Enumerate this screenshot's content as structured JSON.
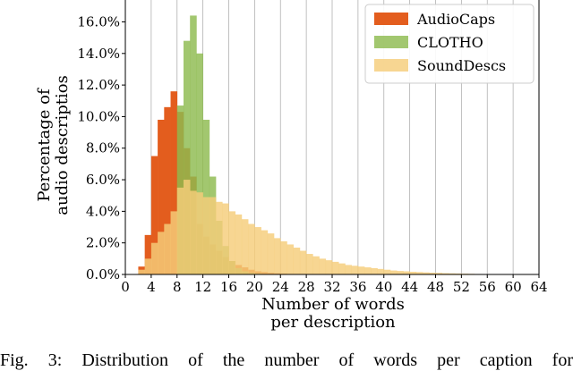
{
  "chart_data": {
    "type": "bar",
    "xlabel": "Number of words\nper description",
    "ylabel": "Percentage of\naudio descriptios",
    "xlim": [
      0,
      64
    ],
    "ylim": [
      0,
      17.5
    ],
    "xticks": [
      0,
      4,
      8,
      12,
      16,
      20,
      24,
      28,
      32,
      36,
      40,
      44,
      48,
      52,
      56,
      60,
      64
    ],
    "yticks": [
      0,
      2,
      4,
      6,
      8,
      10,
      12,
      14,
      16
    ],
    "ytick_format": "percent_1dp",
    "grid": "x",
    "legend_position": "top-right",
    "series": [
      {
        "name": "AudioCaps",
        "color": "#e35d1e",
        "x": [
          2,
          3,
          4,
          5,
          6,
          7,
          8,
          9,
          10,
          11,
          12,
          13,
          14,
          15,
          16,
          17,
          18,
          19,
          20,
          21,
          22,
          23,
          24,
          25
        ],
        "values": [
          0.5,
          2.5,
          7.5,
          9.8,
          10.6,
          11.6,
          10.3,
          8.0,
          6.2,
          3.2,
          2.4,
          1.9,
          1.5,
          1.1,
          0.85,
          0.6,
          0.45,
          0.3,
          0.2,
          0.15,
          0.1,
          0.07,
          0.05,
          0.03
        ]
      },
      {
        "name": "CLOTHO",
        "color": "#8dbb4f",
        "x": [
          8,
          9,
          10,
          11,
          12,
          13,
          14,
          15,
          16,
          17,
          18,
          19,
          20,
          21
        ],
        "values": [
          10.7,
          14.8,
          16.4,
          14.0,
          9.8,
          6.2,
          3.4,
          1.8,
          0.85,
          0.4,
          0.2,
          0.1,
          0.05,
          0.02
        ]
      },
      {
        "name": "SoundDescs",
        "color": "#f5cd7a",
        "x": [
          2,
          3,
          4,
          5,
          6,
          7,
          8,
          9,
          10,
          11,
          12,
          13,
          14,
          15,
          16,
          17,
          18,
          19,
          20,
          21,
          22,
          23,
          24,
          25,
          26,
          27,
          28,
          29,
          30,
          31,
          32,
          33,
          34,
          35,
          36,
          37,
          38,
          39,
          40,
          41,
          42,
          43,
          44,
          45,
          46,
          47,
          48,
          49,
          50,
          51,
          52,
          53,
          54,
          55
        ],
        "values": [
          0.3,
          1.0,
          2.0,
          2.7,
          3.2,
          4.0,
          5.5,
          6.0,
          5.3,
          5.2,
          4.9,
          4.9,
          4.6,
          4.5,
          4.0,
          3.8,
          3.5,
          3.2,
          3.0,
          2.8,
          2.6,
          2.3,
          2.1,
          1.9,
          1.7,
          1.5,
          1.3,
          1.15,
          1.0,
          0.9,
          0.8,
          0.7,
          0.6,
          0.55,
          0.5,
          0.45,
          0.4,
          0.35,
          0.3,
          0.25,
          0.22,
          0.2,
          0.17,
          0.15,
          0.13,
          0.11,
          0.1,
          0.08,
          0.07,
          0.06,
          0.05,
          0.04,
          0.03,
          0.02
        ]
      }
    ]
  },
  "caption": "Fig. 3: Distribution of the number of words per caption for"
}
